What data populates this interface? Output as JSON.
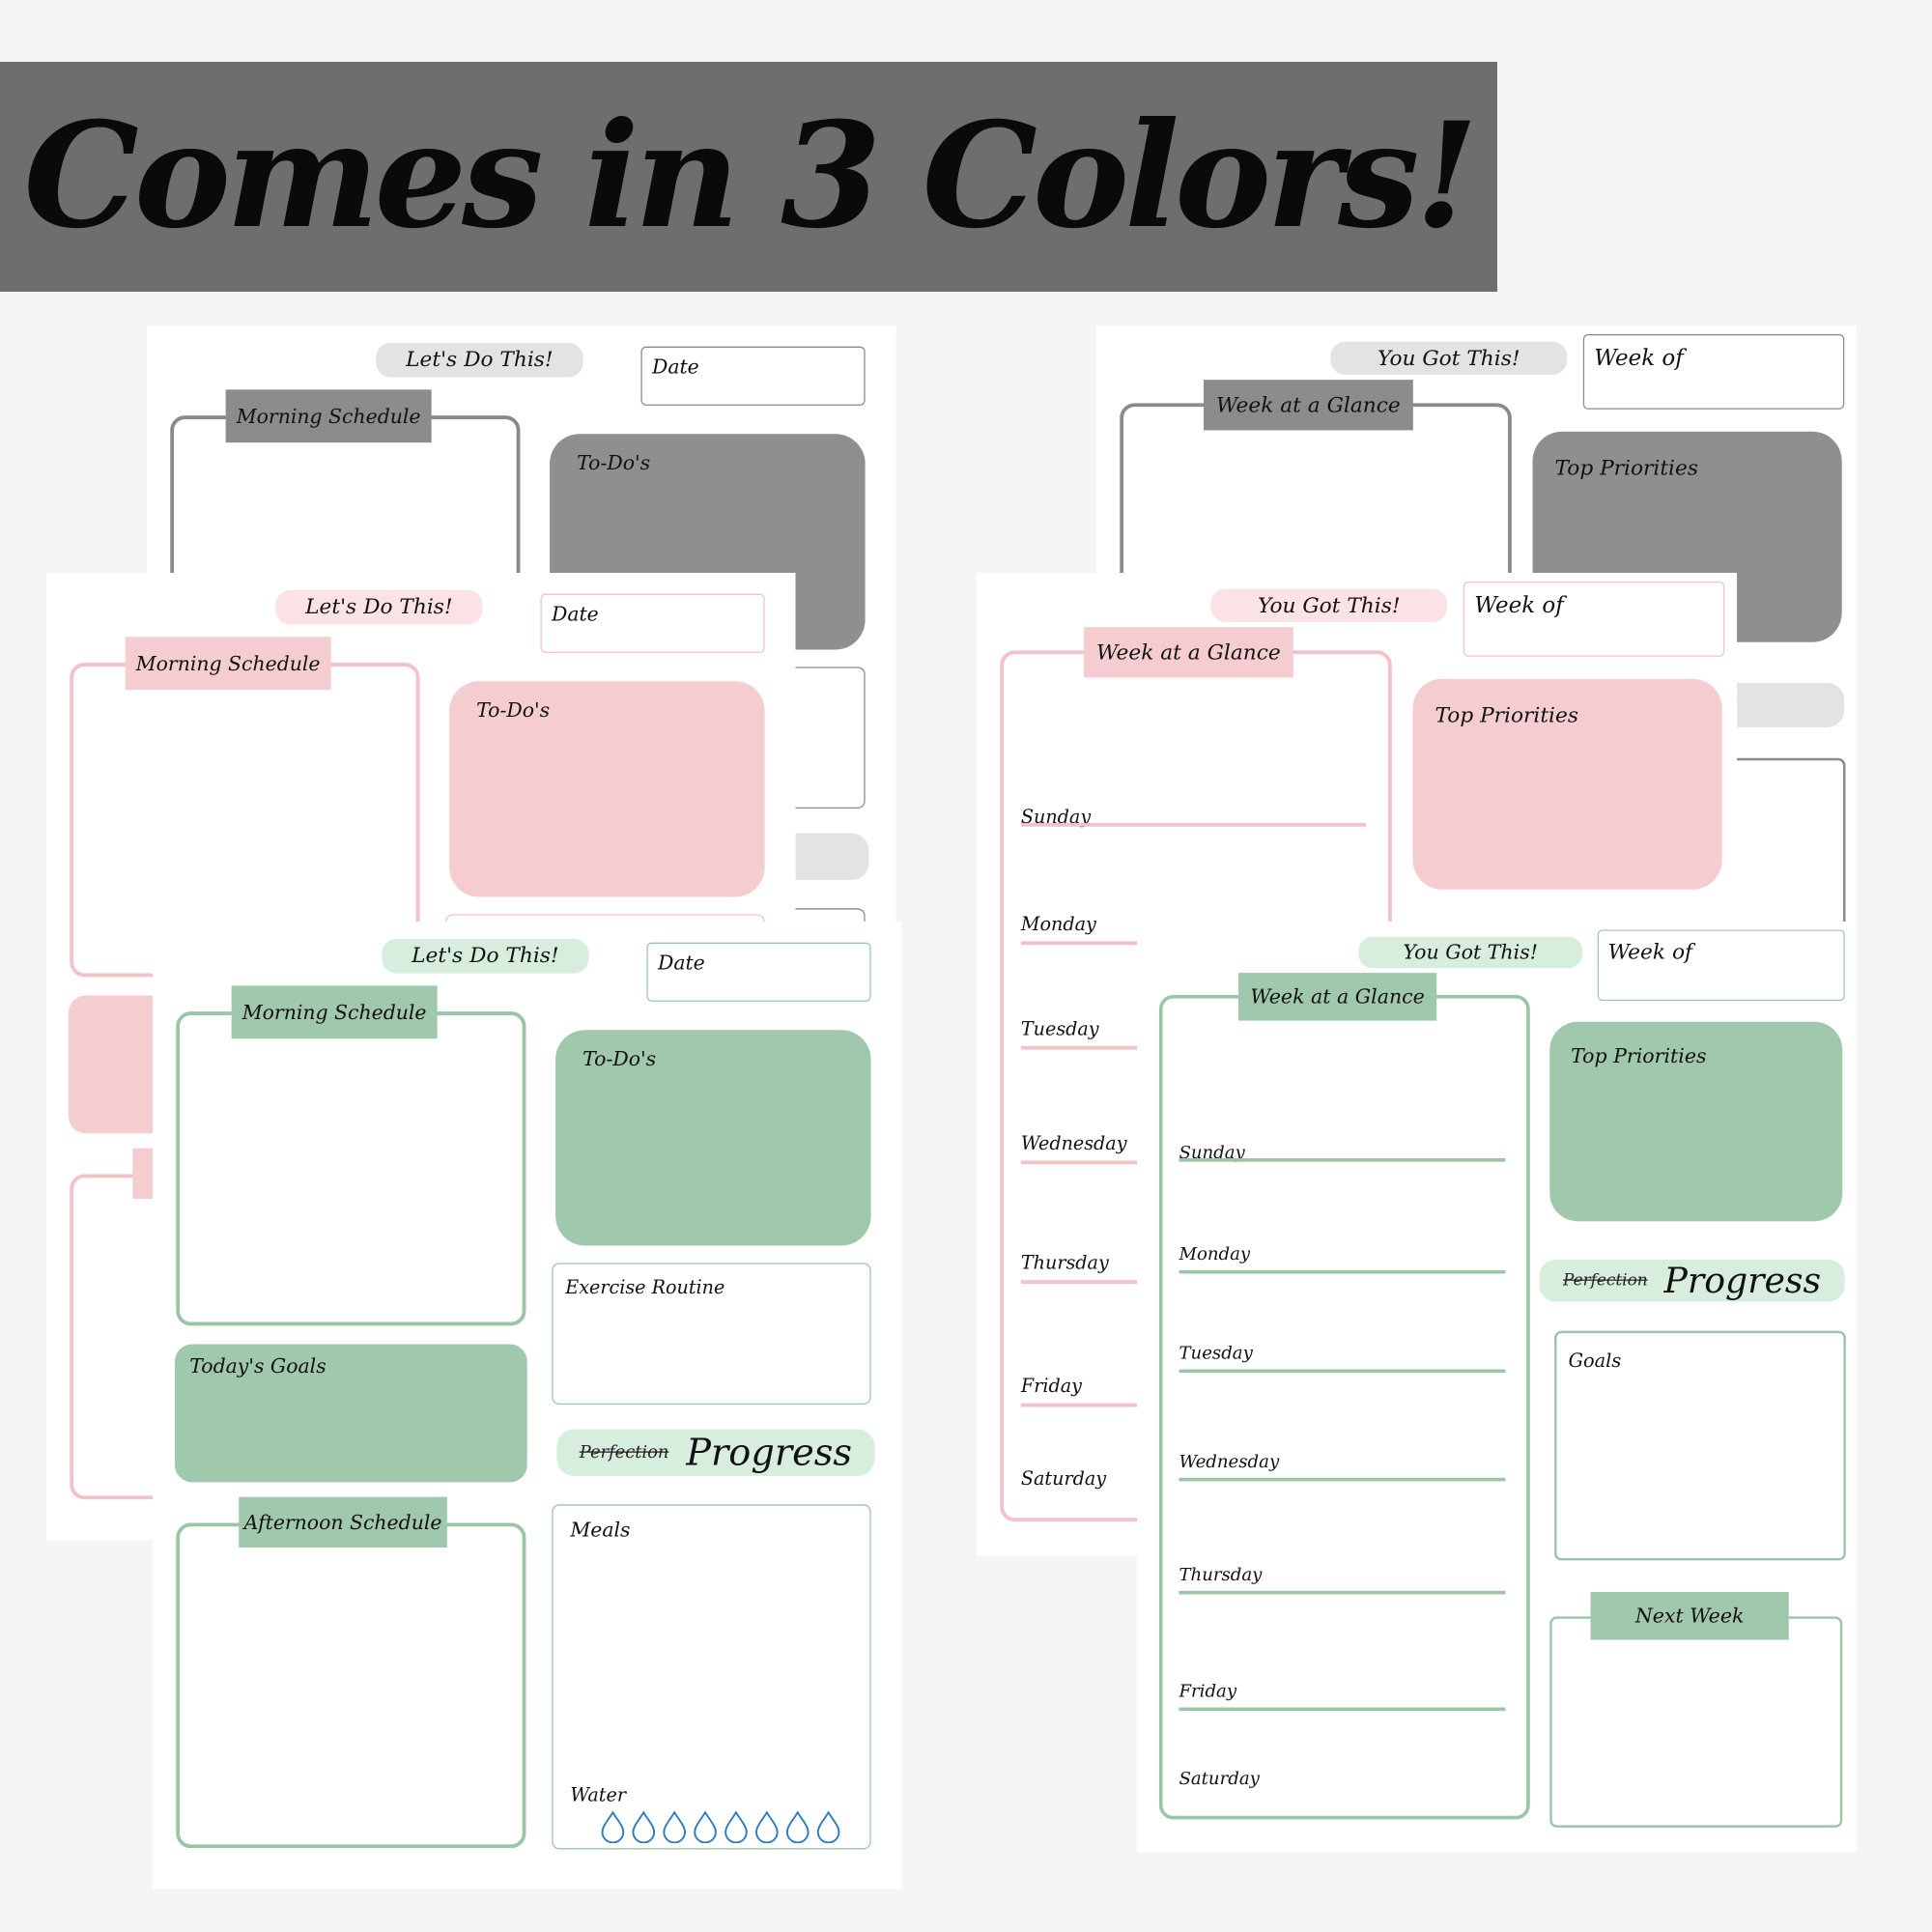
{
  "banner": {
    "title": "Comes in 3 Colors!"
  },
  "colors": {
    "background": "#f5f5f5",
    "banner": "#6e6e6e",
    "gray": "#8f8f8f",
    "pink": "#f5cdd0",
    "green": "#a0c8ac",
    "water_drop": "#2b7bc0"
  },
  "daily": {
    "motto": "Let's Do This!",
    "date_label": "Date",
    "morning_schedule": "Morning Schedule",
    "todos": "To-Do's",
    "exercise_routine": "Exercise Routine",
    "todays_goals": "Today's Goals",
    "perfection": "Perfection",
    "progress": "Progress",
    "afternoon_schedule": "Afternoon Schedule",
    "meals": "Meals",
    "water": "Water",
    "water_drops": 8,
    "water_icon": "water-drop-icon"
  },
  "weekly": {
    "motto": "You Got This!",
    "week_of_label": "Week of",
    "week_at_a_glance": "Week at a Glance",
    "top_priorities": "Top Priorities",
    "perfection": "Perfection",
    "progress": "Progress",
    "goals": "Goals",
    "next_week": "Next Week",
    "days": [
      "Sunday",
      "Monday",
      "Tuesday",
      "Wednesday",
      "Thursday",
      "Friday",
      "Saturday"
    ]
  }
}
